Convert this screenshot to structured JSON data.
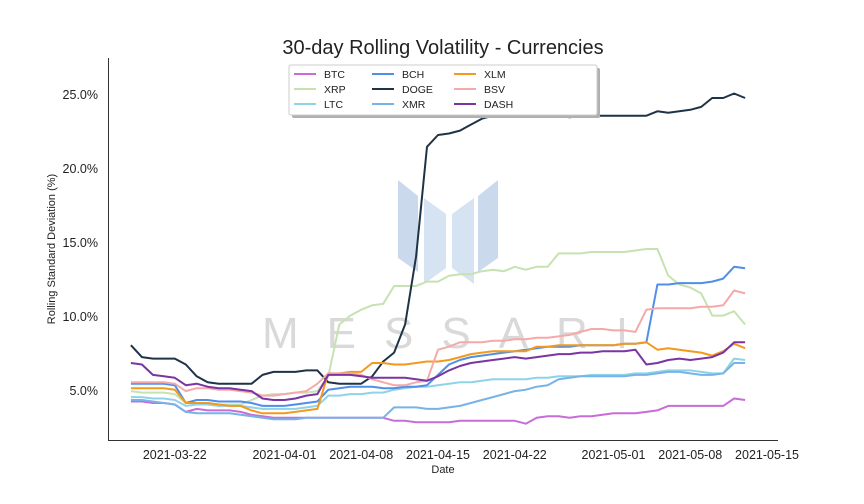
{
  "chart_data": {
    "type": "line",
    "title": "30-day Rolling Volatility - Currencies",
    "xlabel": "Date",
    "ylabel": "Rolling Standard Deviation (%)",
    "ylim": [
      1.7,
      27.5
    ],
    "x_start": "2021-03-16",
    "x_end": "2021-05-16",
    "x_ticks": [
      {
        "date": "2021-03-22",
        "label": "2021-03-22"
      },
      {
        "date": "2021-04-01",
        "label": "2021-04-01"
      },
      {
        "date": "2021-04-08",
        "label": "2021-04-08"
      },
      {
        "date": "2021-04-15",
        "label": "2021-04-15"
      },
      {
        "date": "2021-04-22",
        "label": "2021-04-22"
      },
      {
        "date": "2021-05-01",
        "label": "2021-05-01"
      },
      {
        "date": "2021-05-08",
        "label": "2021-05-08"
      },
      {
        "date": "2021-05-15",
        "label": "2021-05-15"
      }
    ],
    "y_ticks": [
      {
        "value": 5,
        "label": "5.0%"
      },
      {
        "value": 10,
        "label": "10.0%"
      },
      {
        "value": 15,
        "label": "15.0%"
      },
      {
        "value": 20,
        "label": "20.0%"
      },
      {
        "value": 25,
        "label": "25.0%"
      }
    ],
    "grid": false,
    "legend_position": "top-center",
    "watermark": "MESSARI",
    "dates": [
      "2021-03-18",
      "2021-03-19",
      "2021-03-20",
      "2021-03-21",
      "2021-03-22",
      "2021-03-23",
      "2021-03-24",
      "2021-03-25",
      "2021-03-26",
      "2021-03-27",
      "2021-03-28",
      "2021-03-29",
      "2021-03-30",
      "2021-03-31",
      "2021-04-01",
      "2021-04-02",
      "2021-04-03",
      "2021-04-04",
      "2021-04-05",
      "2021-04-06",
      "2021-04-07",
      "2021-04-08",
      "2021-04-09",
      "2021-04-10",
      "2021-04-11",
      "2021-04-12",
      "2021-04-13",
      "2021-04-14",
      "2021-04-15",
      "2021-04-16",
      "2021-04-17",
      "2021-04-18",
      "2021-04-19",
      "2021-04-20",
      "2021-04-21",
      "2021-04-22",
      "2021-04-23",
      "2021-04-24",
      "2021-04-25",
      "2021-04-26",
      "2021-04-27",
      "2021-04-28",
      "2021-04-29",
      "2021-04-30",
      "2021-05-01",
      "2021-05-02",
      "2021-05-03",
      "2021-05-04",
      "2021-05-05",
      "2021-05-06",
      "2021-05-07",
      "2021-05-08",
      "2021-05-09",
      "2021-05-10",
      "2021-05-11",
      "2021-05-12",
      "2021-05-13"
    ],
    "series": [
      {
        "name": "BTC",
        "color": "#c86dd7",
        "values": [
          4.3,
          4.3,
          4.2,
          4.2,
          4.1,
          3.6,
          3.8,
          3.7,
          3.7,
          3.7,
          3.6,
          3.4,
          3.3,
          3.2,
          3.2,
          3.2,
          3.2,
          3.2,
          3.2,
          3.2,
          3.2,
          3.2,
          3.2,
          3.2,
          3.0,
          3.0,
          2.9,
          2.9,
          2.9,
          2.9,
          3.0,
          3.0,
          3.0,
          3.0,
          3.0,
          3.0,
          2.8,
          3.2,
          3.3,
          3.3,
          3.2,
          3.3,
          3.3,
          3.4,
          3.5,
          3.5,
          3.5,
          3.6,
          3.7,
          4.0,
          4.0,
          4.0,
          4.0,
          4.0,
          4.0,
          4.5,
          4.4
        ]
      },
      {
        "name": "XRP",
        "color": "#c7e2b1",
        "values": [
          5.0,
          4.9,
          4.9,
          4.9,
          4.8,
          4.2,
          4.2,
          4.2,
          4.1,
          4.1,
          4.1,
          4.4,
          4.7,
          4.8,
          4.8,
          4.9,
          4.9,
          5.0,
          6.0,
          9.5,
          10.1,
          10.5,
          10.8,
          10.9,
          12.1,
          12.1,
          12.1,
          12.4,
          12.4,
          12.8,
          12.9,
          12.9,
          13.1,
          13.2,
          13.1,
          13.4,
          13.2,
          13.4,
          13.4,
          14.3,
          14.3,
          14.3,
          14.4,
          14.4,
          14.4,
          14.4,
          14.5,
          14.6,
          14.6,
          12.8,
          12.2,
          12.0,
          11.6,
          10.1,
          10.1,
          10.4,
          9.5
        ]
      },
      {
        "name": "LTC",
        "color": "#8fd3e8",
        "values": [
          4.6,
          4.6,
          4.5,
          4.5,
          4.4,
          4.0,
          4.1,
          4.1,
          4.0,
          4.0,
          4.0,
          3.9,
          3.8,
          3.8,
          3.8,
          3.8,
          3.9,
          4.0,
          4.7,
          4.7,
          4.8,
          4.8,
          4.9,
          4.9,
          5.1,
          5.2,
          5.3,
          5.3,
          5.4,
          5.5,
          5.6,
          5.6,
          5.7,
          5.8,
          5.8,
          5.8,
          5.8,
          5.9,
          5.9,
          6.0,
          6.0,
          6.0,
          6.1,
          6.1,
          6.1,
          6.1,
          6.2,
          6.2,
          6.3,
          6.4,
          6.4,
          6.4,
          6.3,
          6.2,
          6.2,
          7.2,
          7.1
        ]
      },
      {
        "name": "BCH",
        "color": "#4f8fe8",
        "values": [
          5.5,
          5.5,
          5.5,
          5.5,
          5.4,
          4.2,
          4.4,
          4.4,
          4.3,
          4.3,
          4.3,
          4.2,
          4.0,
          4.0,
          4.0,
          4.1,
          4.2,
          4.3,
          5.1,
          5.2,
          5.3,
          5.3,
          5.3,
          5.2,
          5.2,
          5.3,
          5.3,
          5.4,
          6.1,
          6.8,
          7.1,
          7.3,
          7.4,
          7.5,
          7.6,
          7.7,
          7.8,
          7.9,
          8.0,
          8.0,
          8.0,
          8.1,
          8.1,
          8.1,
          8.1,
          8.2,
          8.2,
          8.3,
          12.2,
          12.2,
          12.3,
          12.3,
          12.3,
          12.4,
          12.6,
          13.4,
          13.3
        ]
      },
      {
        "name": "DOGE",
        "color": "#1f3347",
        "values": [
          8.1,
          7.3,
          7.2,
          7.2,
          7.2,
          6.8,
          6.0,
          5.6,
          5.5,
          5.5,
          5.5,
          5.5,
          6.1,
          6.3,
          6.3,
          6.3,
          6.4,
          6.4,
          5.6,
          5.5,
          5.5,
          5.5,
          6.0,
          7.0,
          7.6,
          9.5,
          14.1,
          21.5,
          22.3,
          22.4,
          22.6,
          23.0,
          23.4,
          23.6,
          23.6,
          23.6,
          23.6,
          23.6,
          23.6,
          23.6,
          23.5,
          23.6,
          23.6,
          23.6,
          23.6,
          23.6,
          23.6,
          23.6,
          23.9,
          23.8,
          23.9,
          24.0,
          24.2,
          24.8,
          24.8,
          25.1,
          24.8
        ]
      },
      {
        "name": "XMR",
        "color": "#77b3e8",
        "values": [
          4.4,
          4.4,
          4.3,
          4.2,
          4.1,
          3.6,
          3.5,
          3.5,
          3.5,
          3.5,
          3.4,
          3.3,
          3.2,
          3.1,
          3.1,
          3.1,
          3.2,
          3.2,
          3.2,
          3.2,
          3.2,
          3.2,
          3.2,
          3.2,
          3.9,
          3.9,
          3.9,
          3.8,
          3.8,
          3.9,
          4.0,
          4.2,
          4.4,
          4.6,
          4.8,
          5.0,
          5.1,
          5.3,
          5.4,
          5.8,
          5.9,
          6.0,
          6.0,
          6.0,
          6.0,
          6.0,
          6.1,
          6.1,
          6.2,
          6.3,
          6.3,
          6.2,
          6.1,
          6.1,
          6.2,
          6.9,
          6.9
        ]
      },
      {
        "name": "XLM",
        "color": "#f39a1e",
        "values": [
          5.2,
          5.2,
          5.2,
          5.2,
          5.1,
          4.2,
          4.2,
          4.2,
          4.1,
          4.0,
          4.0,
          3.7,
          3.5,
          3.5,
          3.5,
          3.6,
          3.7,
          3.8,
          6.2,
          6.2,
          6.3,
          6.3,
          6.9,
          6.9,
          6.8,
          6.8,
          6.9,
          7.0,
          7.0,
          7.1,
          7.3,
          7.5,
          7.6,
          7.7,
          7.7,
          7.7,
          7.7,
          8.0,
          8.0,
          8.1,
          8.1,
          8.1,
          8.1,
          8.1,
          8.1,
          8.2,
          8.2,
          8.3,
          7.8,
          7.9,
          7.8,
          7.7,
          7.6,
          7.4,
          7.7,
          8.2,
          7.9
        ]
      },
      {
        "name": "BSV",
        "color": "#f5a9a9",
        "values": [
          5.6,
          5.6,
          5.6,
          5.6,
          5.5,
          5.0,
          5.2,
          5.2,
          5.1,
          5.1,
          5.0,
          4.9,
          4.7,
          4.7,
          4.8,
          4.9,
          5.0,
          5.5,
          6.2,
          6.2,
          6.2,
          6.1,
          5.8,
          5.6,
          5.4,
          5.4,
          5.6,
          5.7,
          7.8,
          8.0,
          8.3,
          8.3,
          8.3,
          8.4,
          8.4,
          8.5,
          8.5,
          8.6,
          8.6,
          8.7,
          8.8,
          9.0,
          9.2,
          9.2,
          9.1,
          9.1,
          9.0,
          10.5,
          10.6,
          10.6,
          10.6,
          10.6,
          10.7,
          10.7,
          10.8,
          11.8,
          11.6
        ]
      },
      {
        "name": "DASH",
        "color": "#7a35a3",
        "values": [
          6.9,
          6.8,
          6.1,
          6.0,
          5.9,
          5.4,
          5.5,
          5.3,
          5.2,
          5.2,
          5.1,
          5.0,
          4.5,
          4.4,
          4.4,
          4.5,
          4.7,
          4.8,
          6.1,
          6.1,
          6.1,
          6.0,
          5.9,
          5.9,
          5.9,
          5.9,
          5.8,
          5.7,
          6.0,
          6.4,
          6.7,
          6.9,
          7.0,
          7.1,
          7.2,
          7.3,
          7.2,
          7.3,
          7.4,
          7.5,
          7.5,
          7.6,
          7.6,
          7.7,
          7.7,
          7.7,
          7.8,
          6.8,
          6.9,
          7.1,
          7.2,
          7.1,
          7.2,
          7.3,
          7.6,
          8.3,
          8.3
        ]
      }
    ]
  }
}
